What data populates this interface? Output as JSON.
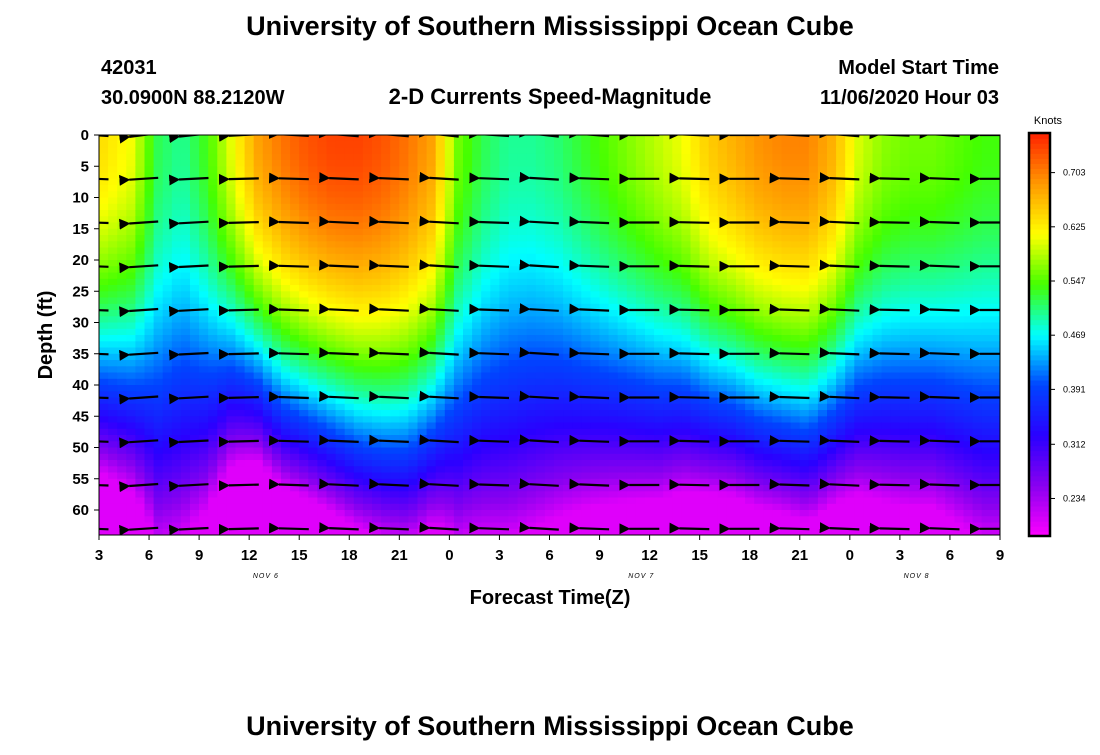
{
  "header": {
    "title_top": "University of Southern Mississippi Ocean Cube",
    "title_bottom": "University of Southern Mississippi Ocean Cube",
    "station_id": "42031",
    "location": "30.0900N 88.2120W",
    "plot_title": "2-D Currents Speed-Magnitude",
    "model_label": "Model Start Time",
    "model_time": "11/06/2020 Hour 03"
  },
  "chart_data": {
    "type": "heatmap",
    "title": "2-D Currents Speed-Magnitude",
    "xlabel": "Forecast Time(Z)",
    "ylabel": "Depth (ft)",
    "x_ticks": [
      "3",
      "6",
      "9",
      "12",
      "15",
      "18",
      "21",
      "0",
      "3",
      "6",
      "9",
      "12",
      "15",
      "18",
      "21",
      "0",
      "3",
      "6",
      "9"
    ],
    "x_range_hours": [
      3,
      57
    ],
    "date_labels": [
      {
        "label": "NOV 6",
        "hour": 13
      },
      {
        "label": "NOV 7",
        "hour": 35.5
      },
      {
        "label": "NOV 8",
        "hour": 52
      }
    ],
    "y_ticks": [
      "0",
      "5",
      "10",
      "15",
      "20",
      "25",
      "30",
      "35",
      "40",
      "45",
      "50",
      "55",
      "60"
    ],
    "y_range_ft": [
      0,
      64
    ],
    "y_inverted": true,
    "colorbar": {
      "units": "Knots",
      "ticks": [
        "0.703",
        "0.625",
        "0.547",
        "0.469",
        "0.391",
        "0.312",
        "0.234"
      ],
      "tick_values": [
        0.703,
        0.625,
        0.547,
        0.469,
        0.391,
        0.312,
        0.234
      ],
      "range": [
        0.18,
        0.76
      ],
      "colors": [
        "#ff00ff",
        "#8a00f0",
        "#2a00ff",
        "#0044ff",
        "#00ffff",
        "#44ff00",
        "#ffff00",
        "#ff9900",
        "#ff2200"
      ]
    },
    "speed_profile": {
      "hours": [
        3,
        5,
        6.5,
        8,
        9.5,
        11,
        12.5,
        14,
        15.5,
        17,
        18.5,
        20,
        21.5,
        23,
        24.5,
        26,
        27.5,
        29,
        30.5,
        32,
        33.5,
        35,
        36.5,
        38,
        39.5,
        41,
        42.5,
        44,
        45.5,
        47,
        48.5,
        50,
        51.5,
        53,
        54.5,
        56,
        57
      ],
      "surface_speed": [
        0.64,
        0.61,
        0.52,
        0.5,
        0.54,
        0.61,
        0.68,
        0.71,
        0.73,
        0.74,
        0.74,
        0.73,
        0.71,
        0.68,
        0.56,
        0.52,
        0.5,
        0.5,
        0.51,
        0.53,
        0.55,
        0.57,
        0.59,
        0.61,
        0.65,
        0.67,
        0.69,
        0.7,
        0.7,
        0.67,
        0.6,
        0.57,
        0.56,
        0.56,
        0.55,
        0.54,
        0.54
      ],
      "depth_decay_ft_at_0391": [
        40,
        41,
        41,
        38,
        39,
        38,
        40,
        44,
        46,
        48,
        50,
        51,
        51,
        48,
        44,
        40,
        38,
        37,
        37,
        38,
        39,
        40,
        41,
        41,
        43,
        44,
        46,
        47,
        48,
        45,
        41,
        40,
        40,
        40,
        41,
        42,
        42
      ]
    },
    "vector_columns_hours": [
      4,
      7,
      10,
      13,
      16,
      19,
      22,
      25,
      28,
      31,
      34,
      37,
      40,
      43,
      46,
      49,
      52,
      55,
      58
    ],
    "vector_depths_ft": [
      0,
      7,
      14,
      21,
      28,
      35,
      42,
      49,
      56,
      63
    ],
    "vector_direction_deg_from_east": [
      172,
      195,
      192,
      186,
      173,
      170,
      170,
      167,
      172,
      167,
      171,
      180,
      175,
      180,
      173,
      170,
      175,
      172,
      180
    ]
  }
}
